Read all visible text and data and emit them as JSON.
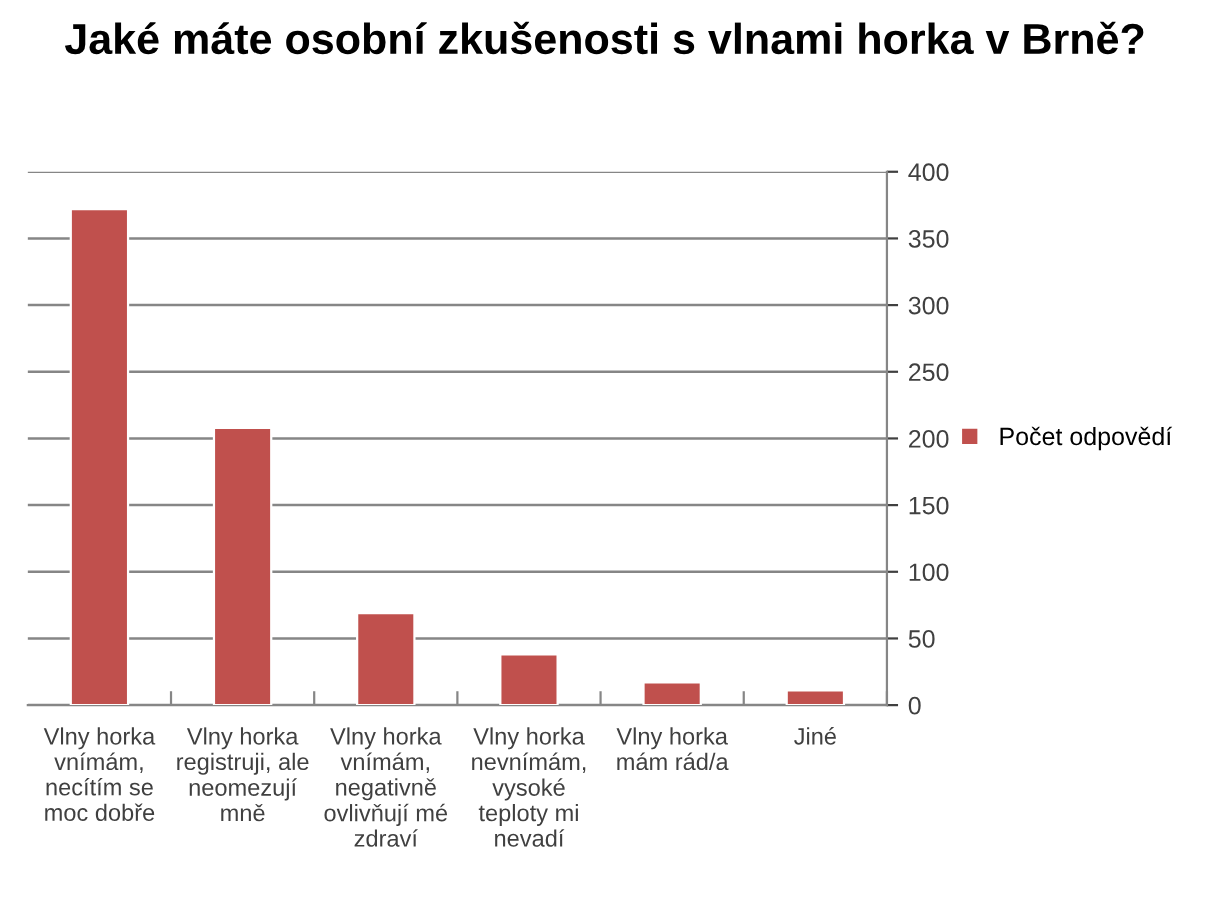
{
  "chart_data": {
    "type": "bar",
    "title": "Jaké máte osobní zkušenosti s vlnami horka v Brně?",
    "categories": [
      "Vlny horka\nvnímám,\nnecítím se\nmoc dobře",
      "Vlny horka\nregistruji, ale\nneomezují\nmně",
      "Vlny horka\nvnímám,\nnegativně\novlivňují mé\nzdraví",
      "Vlny horka\nnevnímám,\nvysoké\nteploty mi\nnevadí",
      "Vlny horka\nmám rád/a",
      "Jiné"
    ],
    "series": [
      {
        "name": "Počet odpovědí",
        "color": "#c0504d",
        "values": [
          372,
          208,
          69,
          38,
          17,
          11
        ]
      }
    ],
    "ylim": [
      0,
      400
    ],
    "yticks": [
      0,
      50,
      100,
      150,
      200,
      250,
      300,
      350,
      400
    ],
    "grid": "y",
    "legend": "right"
  }
}
